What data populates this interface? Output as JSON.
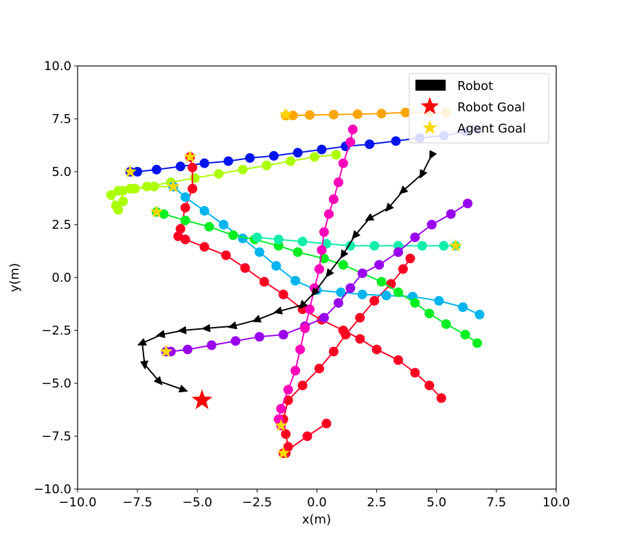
{
  "chart_data": {
    "type": "line",
    "title": "",
    "xlabel": "x(m)",
    "ylabel": "y(m)",
    "xlim": [
      -10,
      10
    ],
    "ylim": [
      -10,
      10
    ],
    "xticks": [
      -10,
      -7.5,
      -5,
      -2.5,
      0,
      2.5,
      5,
      7.5,
      10
    ],
    "yticks": [
      -10,
      -7.5,
      -5,
      -2.5,
      0,
      2.5,
      5,
      7.5,
      10
    ],
    "xtick_labels": [
      "−10.0",
      "−7.5",
      "−5.0",
      "−2.5",
      "0.0",
      "2.5",
      "5.0",
      "7.5",
      "10.0"
    ],
    "ytick_labels": [
      "−10.0",
      "−7.5",
      "−5.0",
      "−2.5",
      "0.0",
      "2.5",
      "5.0",
      "7.5",
      "10.0"
    ],
    "grid": false,
    "legend_position": "top-right",
    "legend": [
      {
        "label": "Robot",
        "marker": "rectangle",
        "color": "#000000"
      },
      {
        "label": "Robot Goal",
        "marker": "star",
        "color": "#ff0000"
      },
      {
        "label": "Agent Goal",
        "marker": "star",
        "color": "#ffd700"
      }
    ],
    "robot": {
      "color": "#000000",
      "points": [
        [
          4.8,
          5.8
        ],
        [
          4.4,
          4.9
        ],
        [
          3.6,
          4.1
        ],
        [
          3.0,
          3.3
        ],
        [
          2.2,
          2.8
        ],
        [
          1.6,
          2.0
        ],
        [
          1.1,
          1.1
        ],
        [
          0.5,
          0.2
        ],
        [
          -0.1,
          -0.7
        ],
        [
          -0.6,
          -1.3
        ],
        [
          -1.6,
          -1.6
        ],
        [
          -2.5,
          -2.0
        ],
        [
          -3.5,
          -2.3
        ],
        [
          -4.6,
          -2.4
        ],
        [
          -5.6,
          -2.5
        ],
        [
          -6.5,
          -2.7
        ],
        [
          -7.3,
          -3.1
        ],
        [
          -7.2,
          -4.1
        ],
        [
          -6.6,
          -4.9
        ],
        [
          -5.6,
          -5.3
        ]
      ],
      "goal": [
        -4.8,
        -5.8
      ]
    },
    "agents": [
      {
        "color": "#ffa500",
        "goal": [
          -1.3,
          7.7
        ],
        "points": [
          [
            5.4,
            7.8
          ],
          [
            4.7,
            7.8
          ],
          [
            3.7,
            7.8
          ],
          [
            2.7,
            7.75
          ],
          [
            1.7,
            7.72
          ],
          [
            0.7,
            7.7
          ],
          [
            -0.3,
            7.68
          ],
          [
            -1.0,
            7.66
          ],
          [
            -1.3,
            7.65
          ]
        ]
      },
      {
        "color": "#0015ee",
        "goal": [
          -7.8,
          5.0
        ],
        "points": [
          [
            6.7,
            7.0
          ],
          [
            6.2,
            6.9
          ],
          [
            5.3,
            6.7
          ],
          [
            4.3,
            6.6
          ],
          [
            3.3,
            6.45
          ],
          [
            2.2,
            6.3
          ],
          [
            1.2,
            6.2
          ],
          [
            0.2,
            6.05
          ],
          [
            -0.8,
            5.9
          ],
          [
            -1.8,
            5.75
          ],
          [
            -2.8,
            5.65
          ],
          [
            -3.7,
            5.5
          ],
          [
            -4.7,
            5.4
          ],
          [
            -5.7,
            5.25
          ],
          [
            -6.7,
            5.1
          ],
          [
            -7.5,
            5.0
          ],
          [
            -7.8,
            5.0
          ]
        ]
      },
      {
        "color": "#aaff00",
        "goal": [
          -6.0,
          4.3
        ],
        "points": [
          [
            0.8,
            5.8
          ],
          [
            -0.1,
            5.7
          ],
          [
            -1.1,
            5.5
          ],
          [
            -2.1,
            5.3
          ],
          [
            -3.1,
            5.1
          ],
          [
            -4.1,
            4.9
          ],
          [
            -5.1,
            4.7
          ],
          [
            -6.1,
            4.5
          ],
          [
            -7.1,
            4.3
          ],
          [
            -7.8,
            4.2
          ],
          [
            -8.3,
            4.1
          ],
          [
            -8.6,
            3.9
          ],
          [
            -8.4,
            3.4
          ],
          [
            -8.1,
            3.6
          ],
          [
            -8.3,
            3.2
          ],
          [
            -8.1,
            4.1
          ],
          [
            -7.6,
            4.2
          ],
          [
            -6.8,
            4.3
          ],
          [
            -6.0,
            4.3
          ]
        ]
      },
      {
        "color": "#ff0022",
        "goal": [
          -5.3,
          5.7
        ],
        "points": [
          [
            -5.3,
            5.7
          ],
          [
            -5.2,
            5.2
          ],
          [
            -5.2,
            4.2
          ],
          [
            -5.5,
            3.3
          ],
          [
            -5.7,
            2.3
          ],
          [
            -5.8,
            1.95
          ],
          [
            -5.5,
            1.8
          ],
          [
            -4.7,
            1.45
          ],
          [
            -3.8,
            1.05
          ],
          [
            -3.0,
            0.45
          ],
          [
            -2.2,
            -0.2
          ],
          [
            -1.4,
            -0.8
          ],
          [
            -0.6,
            -1.5
          ],
          [
            0.2,
            -2.0
          ],
          [
            1.1,
            -2.5
          ],
          [
            1.8,
            -2.9
          ],
          [
            2.5,
            -3.4
          ],
          [
            3.4,
            -3.9
          ],
          [
            4.1,
            -4.5
          ],
          [
            4.7,
            -5.1
          ],
          [
            5.2,
            -5.7
          ]
        ]
      },
      {
        "color": "#ff0022",
        "goal": [
          -1.4,
          -8.3
        ],
        "points": [
          [
            3.9,
            0.9
          ],
          [
            3.6,
            0.4
          ],
          [
            3.1,
            -0.3
          ],
          [
            2.4,
            -1.1
          ],
          [
            1.8,
            -1.9
          ],
          [
            1.2,
            -2.7
          ],
          [
            0.7,
            -3.5
          ],
          [
            0.1,
            -4.3
          ],
          [
            -0.6,
            -5.1
          ],
          [
            -1.2,
            -5.8
          ],
          [
            -1.4,
            -6.7
          ],
          [
            -1.3,
            -7.4
          ],
          [
            -1.2,
            -8.0
          ],
          [
            -1.3,
            -8.3
          ],
          [
            -1.4,
            -8.3
          ],
          [
            -0.4,
            -7.5
          ],
          [
            0.4,
            -6.9
          ]
        ]
      },
      {
        "color": "#00b4ee",
        "goal": [
          -6.0,
          4.3
        ],
        "points": [
          [
            6.8,
            -1.75
          ],
          [
            6.1,
            -1.4
          ],
          [
            5.1,
            -1.1
          ],
          [
            4.0,
            -0.9
          ],
          [
            2.9,
            -0.85
          ],
          [
            1.9,
            -0.8
          ],
          [
            1.0,
            -0.7
          ],
          [
            0.0,
            -0.6
          ],
          [
            -0.9,
            -0.15
          ],
          [
            -1.7,
            0.55
          ],
          [
            -2.4,
            1.2
          ],
          [
            -3.1,
            1.85
          ],
          [
            -3.9,
            2.5
          ],
          [
            -4.7,
            3.15
          ],
          [
            -5.5,
            3.8
          ],
          [
            -6.0,
            4.3
          ]
        ]
      },
      {
        "color": "#00ee22",
        "goal": [
          -6.7,
          3.1
        ],
        "points": [
          [
            6.7,
            -3.1
          ],
          [
            6.2,
            -2.7
          ],
          [
            5.4,
            -2.2
          ],
          [
            4.7,
            -1.7
          ],
          [
            4.1,
            -1.2
          ],
          [
            3.4,
            -0.7
          ],
          [
            2.7,
            -0.2
          ],
          [
            1.1,
            0.6
          ],
          [
            0.3,
            0.9
          ],
          [
            -0.8,
            1.2
          ],
          [
            -1.6,
            1.5
          ],
          [
            -2.6,
            1.8
          ],
          [
            -3.5,
            2.0
          ],
          [
            -4.5,
            2.4
          ],
          [
            -5.5,
            2.7
          ],
          [
            -6.4,
            3.0
          ],
          [
            -6.7,
            3.1
          ]
        ]
      },
      {
        "color": "#11eeaa",
        "goal": [
          5.8,
          1.5
        ],
        "points": [
          [
            -2.5,
            1.9
          ],
          [
            -1.6,
            1.8
          ],
          [
            -0.6,
            1.7
          ],
          [
            0.4,
            1.6
          ],
          [
            1.4,
            1.5
          ],
          [
            2.4,
            1.5
          ],
          [
            3.4,
            1.5
          ],
          [
            4.4,
            1.5
          ],
          [
            5.3,
            1.5
          ],
          [
            5.8,
            1.5
          ]
        ]
      },
      {
        "color": "#9900ee",
        "goal": [
          -6.3,
          -3.5
        ],
        "points": [
          [
            6.3,
            3.5
          ],
          [
            5.6,
            3.0
          ],
          [
            4.8,
            2.5
          ],
          [
            4.1,
            1.9
          ],
          [
            3.4,
            1.2
          ],
          [
            2.6,
            0.6
          ],
          [
            1.9,
            0.2
          ],
          [
            1.4,
            -0.5
          ],
          [
            0.9,
            -1.2
          ],
          [
            0.3,
            -1.9
          ],
          [
            -0.5,
            -2.3
          ],
          [
            -1.4,
            -2.7
          ],
          [
            -2.4,
            -2.8
          ],
          [
            -3.4,
            -3.0
          ],
          [
            -4.4,
            -3.2
          ],
          [
            -5.4,
            -3.4
          ],
          [
            -6.1,
            -3.5
          ],
          [
            -6.3,
            -3.5
          ]
        ]
      },
      {
        "color": "#ff00bb",
        "goal": [
          -1.5,
          -7.0
        ],
        "points": [
          [
            1.5,
            7.0
          ],
          [
            1.4,
            6.4
          ],
          [
            1.1,
            5.4
          ],
          [
            0.9,
            4.5
          ],
          [
            0.7,
            3.7
          ],
          [
            0.5,
            3.0
          ],
          [
            0.3,
            2.15
          ],
          [
            0.2,
            1.3
          ],
          [
            0.1,
            0.4
          ],
          [
            -0.1,
            -0.5
          ],
          [
            -0.3,
            -1.5
          ],
          [
            -0.5,
            -2.4
          ],
          [
            -0.7,
            -3.4
          ],
          [
            -0.9,
            -4.4
          ],
          [
            -1.2,
            -5.3
          ],
          [
            -1.5,
            -6.2
          ],
          [
            -1.6,
            -6.7
          ],
          [
            -1.5,
            -7.0
          ]
        ]
      }
    ]
  }
}
